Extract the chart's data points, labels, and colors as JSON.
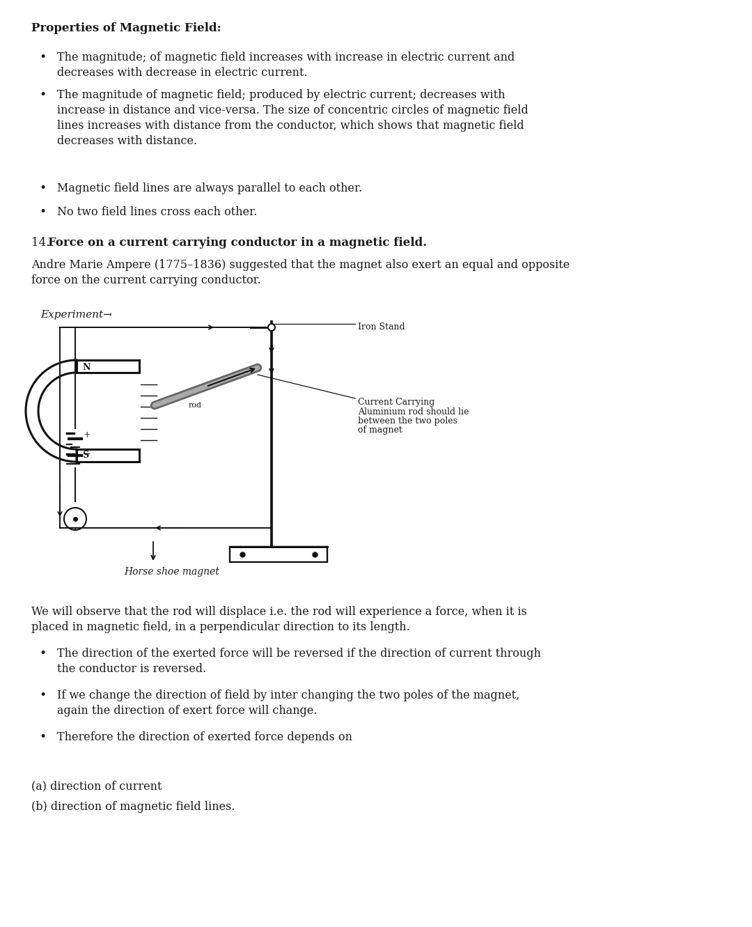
{
  "bg_color": "#ffffff",
  "text_color": "#1a1a1a",
  "heading1": "Properties of Magnetic Field:",
  "bullet1_line1": "The magnitude; of magnetic field increases with increase in electric current and",
  "bullet1_line2": "decreases with decrease in electric current.",
  "bullet2_line1": "The magnitude of magnetic field; produced by electric current; decreases with",
  "bullet2_line2": "increase in distance and vice-versa. The size of concentric circles of magnetic field",
  "bullet2_line3": "lines increases with distance from the conductor, which shows that magnetic field",
  "bullet2_line4": "decreases with distance.",
  "bullet3": "Magnetic field lines are always parallel to each other.",
  "bullet4": "No two field lines cross each other.",
  "section14_num": "14. ",
  "section14_bold": "Force on a current carrying conductor in a magnetic field.",
  "para1_line1": "Andre Marie Ampere (1775–1836) suggested that the magnet also exert an equal and opposite",
  "para1_line2": "force on the current carrying conductor.",
  "experiment_label": "Experiment→",
  "iron_stand_label": "Iron Stand",
  "current_label_line1": "Current Carrying",
  "current_label_line2": "Aluminium rod should lie",
  "current_label_line3": "between the two poles",
  "current_label_line4": "of magnet",
  "horse_shoe_label": "Horse shoe magnet",
  "para2_line1": "We will observe that the rod will displace i.e. the rod will experience a force, when it is",
  "para2_line2": "placed in magnetic field, in a perpendicular direction to its length.",
  "bullet5_line1": "The direction of the exerted force will be reversed if the direction of current through",
  "bullet5_line2": "the conductor is reversed.",
  "bullet6_line1": "If we change the direction of field by inter changing the two poles of the magnet,",
  "bullet6_line2": "again the direction of exert force will change.",
  "bullet7": "Therefore the direction of exerted force depends on",
  "sub_a": "(a) direction of current",
  "sub_b": "(b) direction of magnetic field lines.",
  "font_size_heading": 12,
  "font_size_body": 11.5,
  "font_size_diagram": 9
}
